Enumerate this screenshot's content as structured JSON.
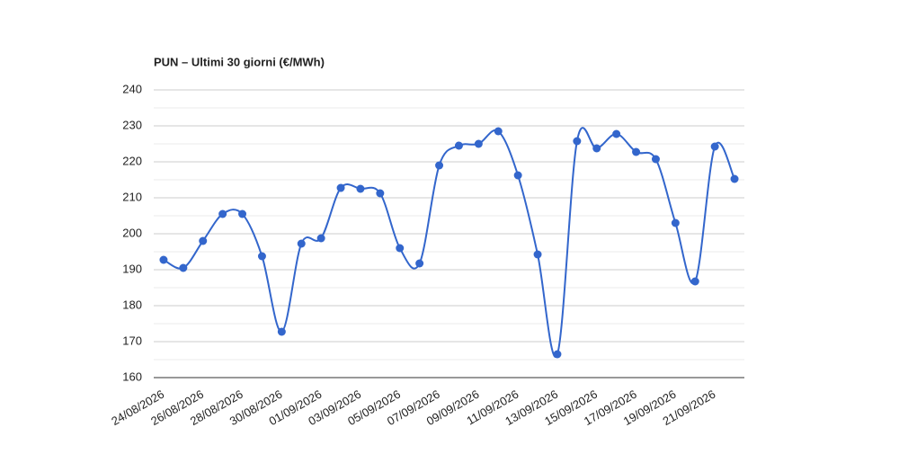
{
  "chart_data": {
    "type": "line",
    "title": "PUN – Ultimi 30 giorni (€/MWh)",
    "categories": [
      "24/08/2026",
      null,
      "26/08/2026",
      null,
      "28/08/2026",
      null,
      "30/08/2026",
      null,
      "01/09/2026",
      null,
      "03/09/2026",
      null,
      "05/09/2026",
      null,
      "07/09/2026",
      null,
      "09/09/2026",
      null,
      "11/09/2026",
      null,
      "13/09/2026",
      null,
      "15/09/2026",
      null,
      "17/09/2026",
      null,
      "19/09/2026",
      null,
      "21/09/2026",
      null
    ],
    "series": [
      {
        "color": "#3366cc",
        "values": [
          192.75,
          190.5,
          198,
          205.5,
          205.5,
          193.75,
          172.75,
          197.25,
          198.75,
          212.75,
          212.5,
          211.25,
          196,
          191.75,
          219,
          224.5,
          225,
          228.5,
          216.25,
          194.25,
          166.5,
          225.75,
          223.75,
          227.75,
          222.75,
          220.75,
          203,
          186.75,
          224.25,
          215.25
        ]
      }
    ],
    "ylim": [
      160,
      240
    ],
    "yticks": [
      160,
      170,
      180,
      190,
      200,
      210,
      220,
      230,
      240
    ],
    "grid": true,
    "minor_grid": true,
    "smooth": true
  }
}
